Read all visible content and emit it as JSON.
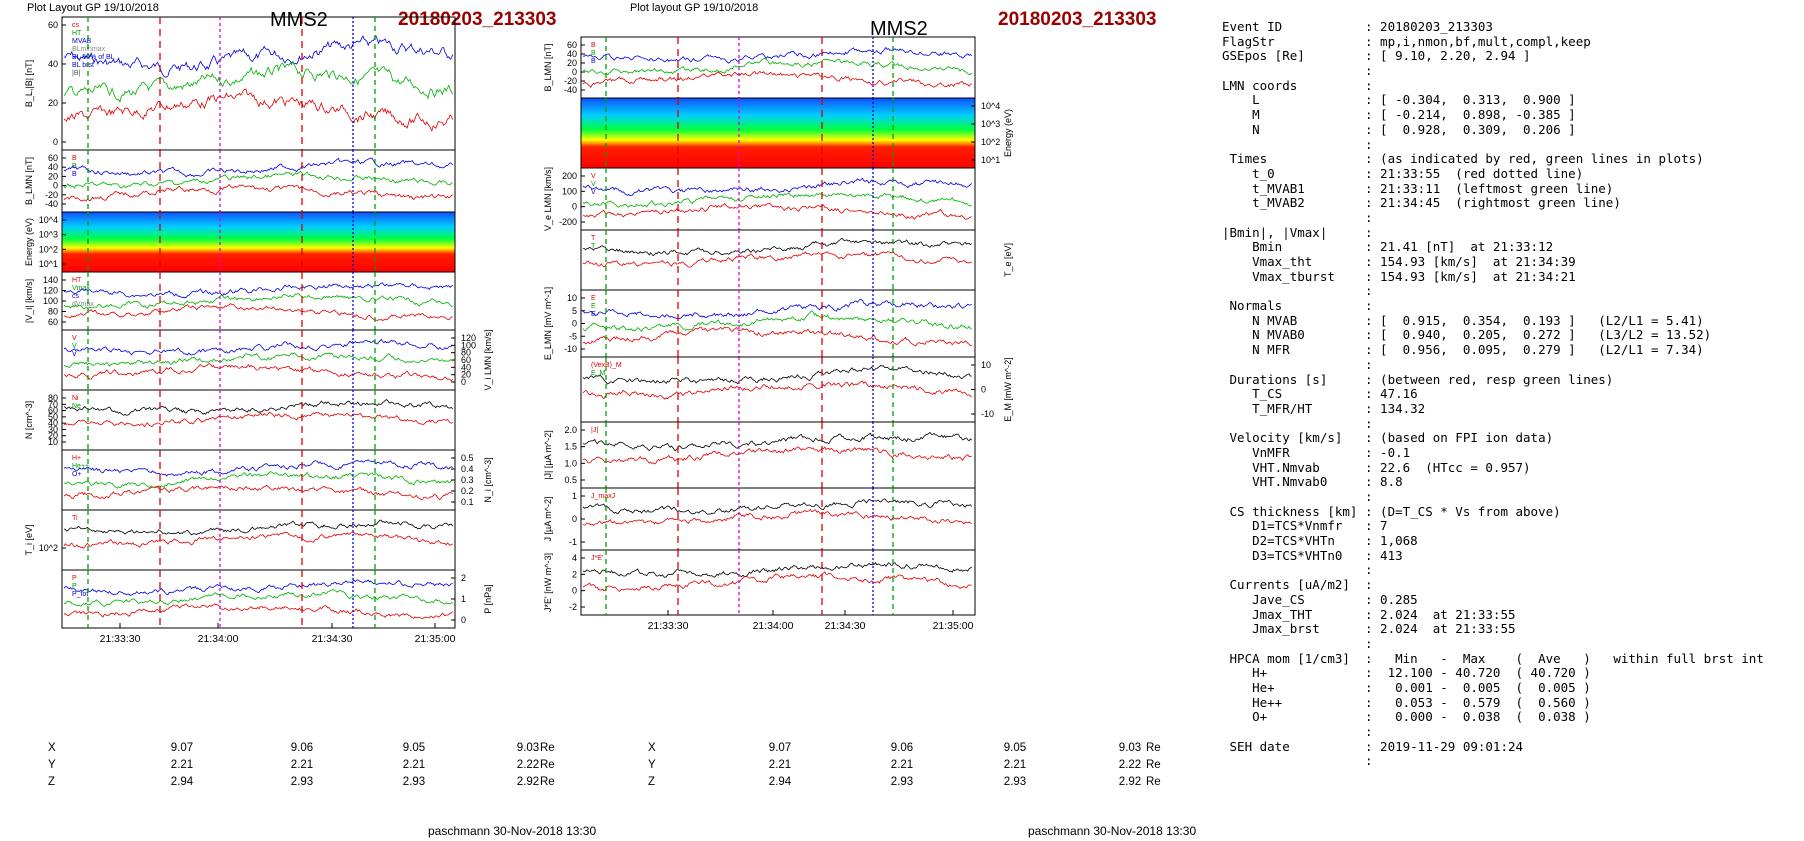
{
  "left_plot": {
    "header_left": "Plot Layout GP 19/10/2018",
    "title": "MMS2",
    "event_id": "20180203_213303",
    "footer": "paschmann 30-Nov-2018 13:30",
    "time_ticks": [
      "21:33:30",
      "21:34:00",
      "21:34:30",
      "21:35:00"
    ],
    "positions": [
      {
        "axis": "X",
        "values": [
          "9.07",
          "9.06",
          "9.05",
          "9.03"
        ],
        "unit": "Re"
      },
      {
        "axis": "Y",
        "values": [
          "2.21",
          "2.21",
          "2.21",
          "2.22"
        ],
        "unit": "Re"
      },
      {
        "axis": "Z",
        "values": [
          "2.94",
          "2.93",
          "2.93",
          "2.92"
        ],
        "unit": "Re"
      }
    ],
    "panels": [
      {
        "ylabel": "B_L,|B| [nT]",
        "legend": [
          "cs",
          "HT",
          "MVAB",
          "BLminmax",
          "BL 50% of BL",
          "BL brst",
          "|B|"
        ],
        "ticks": [
          "60",
          "40",
          "20",
          "0"
        ]
      },
      {
        "ylabel": "B_LMN [nT]",
        "legend": [
          "B",
          "B",
          "B"
        ],
        "ticks": [
          "60",
          "40",
          "20",
          "0",
          "-20",
          "-40"
        ]
      },
      {
        "ylabel": "Energy (eV)",
        "ticks": [
          "10^4",
          "10^3",
          "10^2",
          "10^1"
        ]
      },
      {
        "ylabel": "|V_i| [km/s]",
        "legend": [
          "HT",
          "Vmax",
          "cs",
          "dVmax"
        ],
        "ticks": [
          "140",
          "120",
          "100",
          "80",
          "60"
        ]
      },
      {
        "ylabel": "V_i LMN [km/s]",
        "legend": [
          "V",
          "V",
          "V"
        ],
        "ticks": [
          "120",
          "100",
          "80",
          "60",
          "40",
          "20",
          "0"
        ]
      },
      {
        "ylabel": "N [cm^-3]",
        "legend": [
          "Ni",
          "Ne"
        ],
        "ticks": [
          "80",
          "70",
          "60",
          "50",
          "40",
          "30",
          "20",
          "10"
        ]
      },
      {
        "ylabel": "N_i [cm^-3]",
        "legend": [
          "H+",
          "He++",
          "O+"
        ],
        "ticks": [
          "0.5",
          "0.4",
          "0.3",
          "0.2",
          "0.1"
        ]
      },
      {
        "ylabel": "T_i [eV]",
        "legend": [
          "Ti"
        ],
        "ticks": [
          "10^2"
        ]
      },
      {
        "ylabel": "P [nPa]",
        "legend": [
          "P",
          "P",
          "P_tot"
        ],
        "ticks": [
          "2",
          "1",
          "0"
        ]
      }
    ]
  },
  "right_plot": {
    "header_left": "Plot layout GP 19/10/2018",
    "title": "MMS2",
    "event_id": "20180203_213303",
    "footer": "paschmann 30-Nov-2018 13:30",
    "time_ticks": [
      "21:33:30",
      "21:34:00",
      "21:34:30",
      "21:35:00"
    ],
    "positions": [
      {
        "axis": "X",
        "values": [
          "9.07",
          "9.06",
          "9.05",
          "9.03"
        ],
        "unit": "Re"
      },
      {
        "axis": "Y",
        "values": [
          "2.21",
          "2.21",
          "2.21",
          "2.22"
        ],
        "unit": "Re"
      },
      {
        "axis": "Z",
        "values": [
          "2.94",
          "2.93",
          "2.93",
          "2.92"
        ],
        "unit": "Re"
      }
    ],
    "panels": [
      {
        "ylabel": "B_LMN [nT]",
        "legend": [
          "B",
          "B",
          "B"
        ],
        "ticks": [
          "60",
          "40",
          "20",
          "0",
          "-20",
          "-40"
        ]
      },
      {
        "ylabel": "Energy (eV)",
        "ticks": [
          "10^4",
          "10^3",
          "10^2",
          "10^1"
        ]
      },
      {
        "ylabel": "V_e LMN [km/s]",
        "legend": [
          "V",
          "V",
          "V"
        ],
        "ticks": [
          "200",
          "100",
          "0",
          "-200"
        ]
      },
      {
        "ylabel": "T_e [eV]",
        "legend": [
          "T",
          "T"
        ],
        "ticks": []
      },
      {
        "ylabel": "E_LMN [mV m^-1]",
        "legend": [
          "E",
          "E",
          "E"
        ],
        "ticks": [
          "10",
          "5",
          "0",
          "-5",
          "-10"
        ]
      },
      {
        "ylabel": "E_M [mW m^-2]",
        "legend": [
          "(VexB)_M",
          "E_M"
        ],
        "ticks": [
          "10",
          "0",
          "-10"
        ]
      },
      {
        "ylabel": "|J| [µA m^-2]",
        "legend": [
          "|J|"
        ],
        "ticks": [
          "2.0",
          "1.5",
          "1.0",
          "0.5"
        ]
      },
      {
        "ylabel": "J [µA m^-2]",
        "legend": [
          "J_maxJ"
        ],
        "ticks": [
          "1",
          "0",
          "-1"
        ]
      },
      {
        "ylabel": "J*E' [nW m^-3]",
        "legend": [
          "J*E'"
        ],
        "ticks": [
          "4",
          "2",
          "0",
          "-2"
        ]
      }
    ]
  },
  "info_lines": [
    "Event ID           : 20180203_213303",
    "FlagStr            : mp,i,nmon,bf,mult,compl,keep",
    "GSEpos [Re]        : [ 9.10, 2.20, 2.94 ]",
    "                   :",
    "LMN coords         :",
    "    L              : [ -0.304,  0.313,  0.900 ]",
    "    M              : [ -0.214,  0.898, -0.385 ]",
    "    N              : [  0.928,  0.309,  0.206 ]",
    "                   :",
    " Times             : (as indicated by red, green lines in plots)",
    "    t_0            : 21:33:55  (red dotted line)",
    "    t_MVAB1        : 21:33:11  (leftmost green line)",
    "    t_MVAB2        : 21:34:45  (rightmost green line)",
    "                   :",
    "|Bmin|, |Vmax|     :",
    "    Bmin           : 21.41 [nT]  at 21:33:12",
    "    Vmax_tht       : 154.93 [km/s]  at 21:34:39",
    "    Vmax_tburst    : 154.93 [km/s]  at 21:34:21",
    "                   :",
    " Normals           :",
    "    N MVAB         : [  0.915,  0.354,  0.193 ]   (L2/L1 = 5.41)",
    "    N MVAB0        : [  0.940,  0.205,  0.272 ]   (L3/L2 = 13.52)",
    "    N MFR          : [  0.956,  0.095,  0.279 ]   (L2/L1 = 7.34)",
    "                   :",
    " Durations [s]     : (between red, resp green lines)",
    "    T_CS           : 47.16",
    "    T_MFR/HT       : 134.32",
    "                   :",
    " Velocity [km/s]   : (based on FPI ion data)",
    "    VnMFR          : -0.1",
    "    VHT.Nmvab      : 22.6  (HTcc = 0.957)",
    "    VHT.Nmvab0     : 8.8",
    "                   :",
    " CS thickness [km] : (D=T_CS * Vs from above)",
    "    D1=TCS*Vnmfr   : 7",
    "    D2=TCS*VHTn    : 1,068",
    "    D3=TCS*VHTn0   : 413",
    "                   :",
    " Currents [uA/m2]  :",
    "    Jave_CS        : 0.285",
    "    Jmax_THT       : 2.024  at 21:33:55",
    "    Jmax_brst      : 2.024  at 21:33:55",
    "                   :",
    " HPCA mom [1/cm3]  :   Min   -  Max    (  Ave   )   within full brst int",
    "    H+             :  12.100 - 40.720  ( 40.720 )",
    "    He+            :   0.001 -  0.005  (  0.005 )",
    "    He++           :   0.053 -  0.579  (  0.560 )",
    "    O+             :   0.000 -  0.038  (  0.038 )",
    "                   :",
    " SEH date          : 2019-11-29 09:01:24",
    "                   :"
  ],
  "colors": {
    "event_id": "#9a0000",
    "red_line": "#e00000",
    "green_line": "#00a000",
    "magenta_line": "#e000e0",
    "blue_line": "#0000e0"
  }
}
